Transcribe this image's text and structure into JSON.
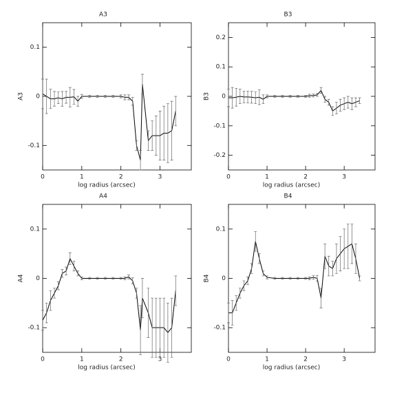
{
  "chart_data": [
    {
      "type": "line",
      "title": "A3",
      "xlabel": "log radius (arcsec)",
      "ylabel": "A3",
      "xlim": [
        0,
        3.8
      ],
      "xticks": [
        0,
        1,
        2,
        3
      ],
      "ylim": [
        -0.15,
        0.15
      ],
      "yticks": [
        -0.1,
        0,
        0.1
      ],
      "color": "#000000",
      "x": [
        0,
        0.1,
        0.2,
        0.3,
        0.4,
        0.5,
        0.6,
        0.7,
        0.8,
        0.9,
        1.0,
        1.2,
        1.4,
        1.6,
        1.8,
        2.0,
        2.1,
        2.2,
        2.3,
        2.4,
        2.5,
        2.55,
        2.7,
        2.8,
        2.9,
        3.0,
        3.1,
        3.2,
        3.3,
        3.4
      ],
      "values": [
        0.005,
        0.0,
        -0.005,
        -0.005,
        -0.003,
        -0.005,
        -0.002,
        -0.002,
        -0.001,
        -0.01,
        0.0,
        0.0,
        0.0,
        0.0,
        0.0,
        0.0,
        -0.002,
        -0.002,
        -0.01,
        -0.1,
        -0.13,
        0.025,
        -0.09,
        -0.08,
        -0.08,
        -0.08,
        -0.075,
        -0.075,
        -0.07,
        -0.03
      ],
      "errors": [
        0.03,
        0.035,
        0.02,
        0.015,
        0.012,
        0.015,
        0.012,
        0.02,
        0.015,
        0.01,
        0.004,
        0.002,
        0.002,
        0.002,
        0.002,
        0.003,
        0.005,
        0.005,
        0.008,
        0.01,
        0.02,
        0.02,
        0.02,
        0.03,
        0.04,
        0.05,
        0.055,
        0.06,
        0.06,
        0.03
      ]
    },
    {
      "type": "line",
      "title": "B3",
      "xlabel": "log radius (arcsec)",
      "ylabel": "B3",
      "xlim": [
        0,
        3.8
      ],
      "xticks": [
        0,
        1,
        2,
        3
      ],
      "ylim": [
        -0.25,
        0.25
      ],
      "yticks": [
        -0.2,
        -0.1,
        0,
        0.1,
        0.2
      ],
      "color": "#000000",
      "x": [
        0,
        0.1,
        0.2,
        0.3,
        0.4,
        0.5,
        0.6,
        0.7,
        0.8,
        0.9,
        1.0,
        1.2,
        1.4,
        1.6,
        1.8,
        2.0,
        2.1,
        2.2,
        2.3,
        2.4,
        2.5,
        2.6,
        2.7,
        2.8,
        2.9,
        3.0,
        3.1,
        3.2,
        3.3,
        3.4
      ],
      "values": [
        -0.005,
        -0.005,
        -0.003,
        0.0,
        -0.002,
        -0.002,
        -0.003,
        -0.005,
        -0.003,
        -0.01,
        0.0,
        0.0,
        0.0,
        0.0,
        0.0,
        0.0,
        0.002,
        0.003,
        0.005,
        0.02,
        -0.01,
        -0.02,
        -0.05,
        -0.04,
        -0.03,
        -0.025,
        -0.02,
        -0.025,
        -0.02,
        -0.015
      ],
      "errors": [
        0.03,
        0.035,
        0.03,
        0.025,
        0.02,
        0.02,
        0.02,
        0.02,
        0.025,
        0.015,
        0.005,
        0.003,
        0.003,
        0.003,
        0.003,
        0.003,
        0.005,
        0.005,
        0.005,
        0.01,
        0.01,
        0.01,
        0.015,
        0.02,
        0.02,
        0.02,
        0.02,
        0.02,
        0.015,
        0.01
      ]
    },
    {
      "type": "line",
      "title": "A4",
      "xlabel": "log radius (arcsec)",
      "ylabel": "A4",
      "xlim": [
        0,
        3.8
      ],
      "xticks": [
        0,
        1,
        2,
        3
      ],
      "ylim": [
        -0.15,
        0.15
      ],
      "yticks": [
        -0.1,
        0,
        0.1
      ],
      "color": "#000000",
      "x": [
        0,
        0.1,
        0.2,
        0.3,
        0.4,
        0.5,
        0.6,
        0.7,
        0.8,
        0.9,
        1.0,
        1.2,
        1.4,
        1.6,
        1.8,
        2.0,
        2.1,
        2.2,
        2.3,
        2.4,
        2.5,
        2.55,
        2.7,
        2.8,
        2.9,
        3.0,
        3.1,
        3.2,
        3.3,
        3.4
      ],
      "values": [
        -0.085,
        -0.07,
        -0.045,
        -0.03,
        -0.015,
        0.01,
        0.015,
        0.04,
        0.025,
        0.01,
        0.0,
        0.0,
        0.0,
        0.0,
        0.0,
        0.0,
        0.0,
        0.003,
        -0.005,
        -0.03,
        -0.105,
        -0.04,
        -0.07,
        -0.1,
        -0.1,
        -0.1,
        -0.1,
        -0.11,
        -0.1,
        -0.025
      ],
      "errors": [
        0.02,
        0.02,
        0.02,
        0.01,
        0.008,
        0.008,
        0.008,
        0.012,
        0.01,
        0.005,
        0.003,
        0.002,
        0.002,
        0.002,
        0.002,
        0.002,
        0.003,
        0.004,
        0.006,
        0.01,
        0.05,
        0.04,
        0.05,
        0.06,
        0.06,
        0.06,
        0.06,
        0.06,
        0.06,
        0.03
      ]
    },
    {
      "type": "line",
      "title": "B4",
      "xlabel": "log radius (arcsec)",
      "ylabel": "B4",
      "xlim": [
        0,
        3.8
      ],
      "xticks": [
        0,
        1,
        2,
        3
      ],
      "ylim": [
        -0.15,
        0.15
      ],
      "yticks": [
        -0.1,
        0,
        0.1
      ],
      "color": "#000000",
      "x": [
        0,
        0.1,
        0.2,
        0.3,
        0.4,
        0.5,
        0.6,
        0.7,
        0.8,
        0.9,
        1.0,
        1.2,
        1.4,
        1.6,
        1.8,
        2.0,
        2.1,
        2.2,
        2.3,
        2.4,
        2.5,
        2.6,
        2.7,
        2.8,
        2.9,
        3.0,
        3.1,
        3.2,
        3.3,
        3.4
      ],
      "values": [
        -0.07,
        -0.07,
        -0.05,
        -0.03,
        -0.015,
        -0.005,
        0.02,
        0.075,
        0.04,
        0.01,
        0.002,
        0.0,
        0.0,
        0.0,
        0.0,
        0.0,
        0.0,
        0.002,
        0.0,
        -0.04,
        0.045,
        0.025,
        0.02,
        0.04,
        0.05,
        0.06,
        0.065,
        0.07,
        0.04,
        0.0
      ],
      "errors": [
        0.02,
        0.025,
        0.015,
        0.01,
        0.01,
        0.008,
        0.01,
        0.02,
        0.01,
        0.005,
        0.003,
        0.002,
        0.002,
        0.002,
        0.002,
        0.002,
        0.003,
        0.004,
        0.006,
        0.02,
        0.025,
        0.02,
        0.015,
        0.03,
        0.035,
        0.04,
        0.045,
        0.04,
        0.03,
        0.005
      ]
    }
  ]
}
